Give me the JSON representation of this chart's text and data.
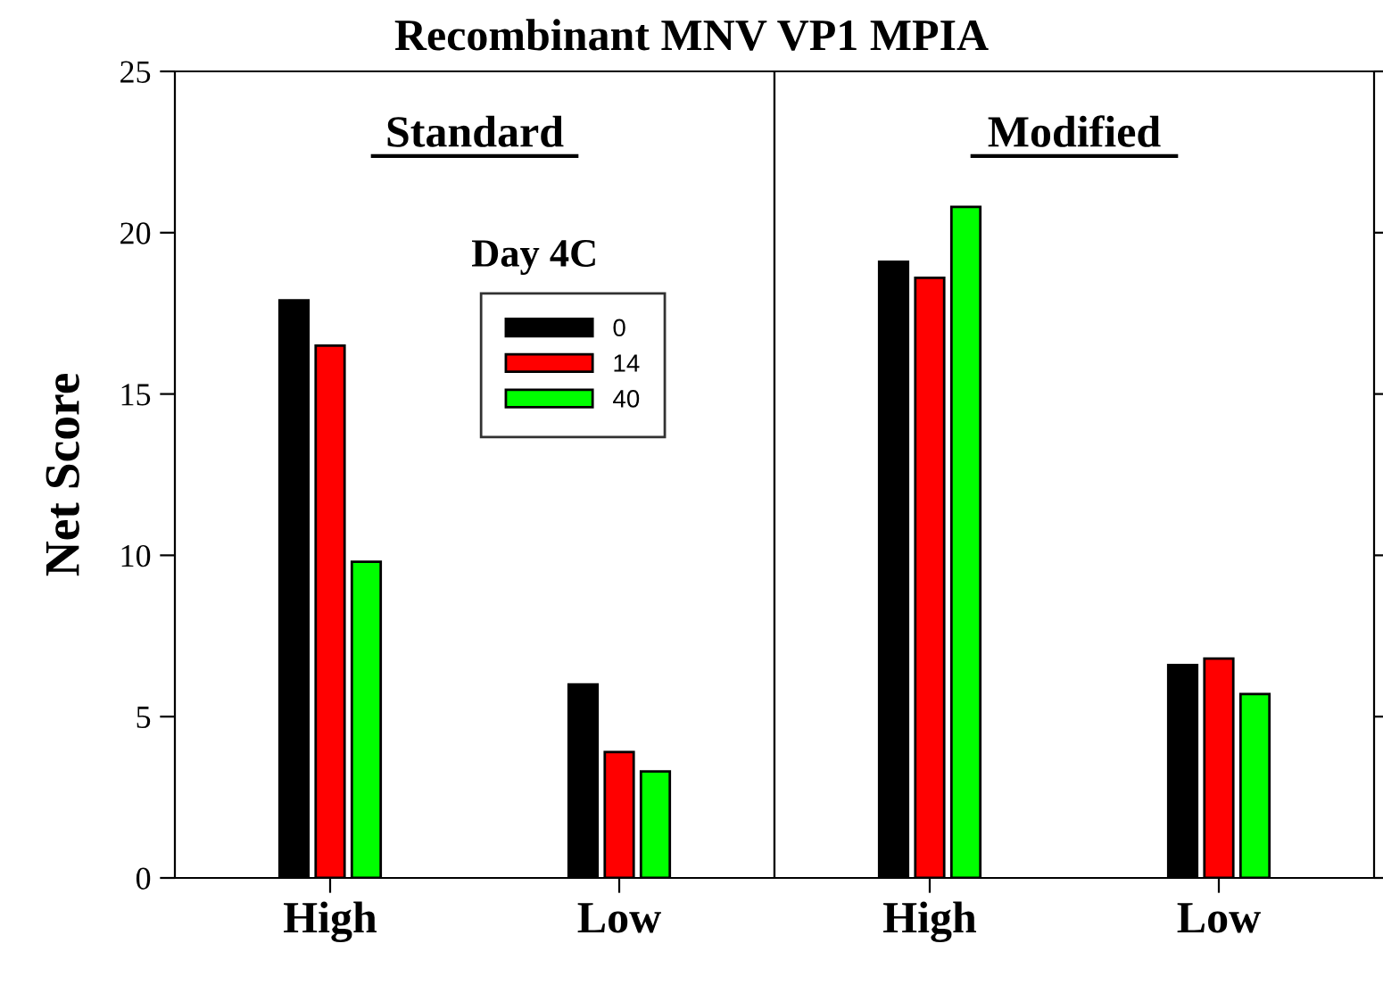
{
  "chart_data": [
    {
      "type": "bar",
      "title": "Recombinant MNV VP1 MPIA",
      "subtitle": "Standard",
      "ylabel": "Net Score",
      "legend_title": "Day 4C",
      "legend": "top right",
      "categories": [
        "High",
        "Low"
      ],
      "ylim": [
        0,
        25
      ],
      "yticks": [
        0,
        5,
        10,
        15,
        20,
        25
      ],
      "tick_labels": true,
      "series": [
        {
          "name": "0",
          "color": "#000000",
          "values": [
            17.9,
            6.0
          ]
        },
        {
          "name": "14",
          "color": "#ff0000",
          "values": [
            16.5,
            3.9
          ]
        },
        {
          "name": "40",
          "color": "#00ff00",
          "values": [
            9.8,
            3.3
          ]
        }
      ]
    },
    {
      "type": "bar",
      "subtitle": "Modified",
      "categories": [
        "High",
        "Low"
      ],
      "ylim": [
        0,
        25
      ],
      "yticks": [
        {
          "value": 0,
          "label": null
        },
        {
          "value": 5,
          "label": null
        },
        {
          "value": 10,
          "label": null
        },
        {
          "value": 15,
          "label": null
        },
        {
          "value": 20,
          "label": null
        },
        {
          "value": 25,
          "label": null
        }
      ],
      "tick_labels": "x",
      "series": [
        {
          "color": "#000000",
          "values": [
            19.1,
            6.6
          ]
        },
        {
          "color": "#ff0000",
          "values": [
            18.6,
            6.8
          ]
        },
        {
          "color": "#00ff00",
          "values": [
            20.8,
            5.7
          ]
        }
      ]
    }
  ]
}
